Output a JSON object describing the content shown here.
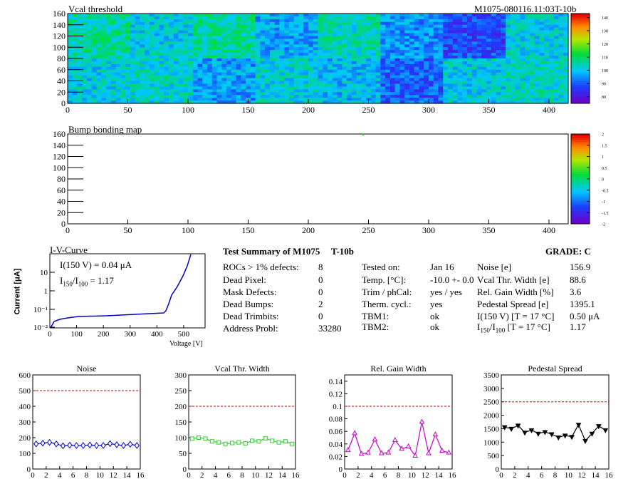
{
  "vcal_map": {
    "title": "Vcal threshold",
    "module_tag": "M1075-080116.11:03T-10b",
    "xticks": [
      "0",
      "50",
      "100",
      "150",
      "200",
      "250",
      "300",
      "350",
      "400"
    ],
    "yticks": [
      "0",
      "20",
      "40",
      "60",
      "80",
      "100",
      "120",
      "140",
      "160"
    ],
    "zticks": [
      "80",
      "90",
      "100",
      "110",
      "120",
      "130",
      "140"
    ],
    "roc_means": {
      "top": [
        106,
        101,
        106,
        97,
        104,
        95,
        88,
        101
      ],
      "bottom": [
        101,
        103,
        96,
        102,
        99,
        90,
        101,
        103
      ]
    }
  },
  "bump_map": {
    "title": "Bump bonding map",
    "xticks": [
      "0",
      "50",
      "100",
      "150",
      "200",
      "250",
      "300",
      "350",
      "400"
    ],
    "yticks": [
      "0",
      "20",
      "40",
      "60",
      "80",
      "100",
      "120",
      "140",
      "160"
    ],
    "zticks": [
      "-2",
      "-1.5",
      "-1",
      "-0.5",
      "0",
      "0.5",
      "1",
      "1.5",
      "2"
    ]
  },
  "iv": {
    "title": "I-V-Curve",
    "ylabel": "Current [μA]",
    "xlabel": "Voltage [V]",
    "xticks": [
      "0",
      "100",
      "200",
      "300",
      "400",
      "500"
    ],
    "yticks": [
      "10⁻²",
      "10⁻¹",
      "1",
      "10"
    ],
    "annotation1": "I(150 V) = 0.04 μA",
    "annotation2_a": "I",
    "annotation2_sub1": "150",
    "annotation2_b": "/I",
    "annotation2_sub2": "100",
    "annotation2_c": " =  1.17"
  },
  "summary": {
    "heading": "Test Summary of M1075",
    "tag": "T-10b",
    "grade_label": "GRADE:  C",
    "defects": [
      {
        "label": "ROCs > 1% defects:",
        "value": "8"
      },
      {
        "label": "Dead Pixel:",
        "value": "0"
      },
      {
        "label": "Mask Defects:",
        "value": "0"
      },
      {
        "label": "Dead Bumps:",
        "value": "2"
      },
      {
        "label": "Dead Trimbits:",
        "value": "0"
      },
      {
        "label": "Address Probl:",
        "value": "33280"
      }
    ],
    "conditions": [
      {
        "label": "Tested on:",
        "value": "Jan 16"
      },
      {
        "label": "Temp. [°C]:",
        "value": "-10.0 +- 0.0"
      },
      {
        "label": "Trim / phCal:",
        "value": "yes / yes"
      },
      {
        "label": "Therm. cycl.:",
        "value": "yes"
      },
      {
        "label": "TBM1:",
        "value": "ok"
      },
      {
        "label": "TBM2:",
        "value": "ok"
      }
    ],
    "results": [
      {
        "label": "Noise [e]",
        "value": "156.9"
      },
      {
        "label": "Vcal Thr. Width [e]",
        "value": "88.6"
      },
      {
        "label": "Rel. Gain Width [%]",
        "value": "3.6"
      },
      {
        "label": "Pedestal Spread [e]",
        "value": "1395.1"
      },
      {
        "label": "I(150 V) [T = 17 °C]",
        "value": "0.50 μA"
      }
    ],
    "ratio_label_a": "I",
    "ratio_label_sub1": "150",
    "ratio_label_b": "/I",
    "ratio_label_sub2": "100",
    "ratio_label_c": "  [T = 17 °C]",
    "ratio_value": "1.17"
  },
  "chart_data": [
    {
      "type": "line",
      "title": "Noise",
      "x": [
        0,
        1,
        2,
        3,
        4,
        5,
        6,
        7,
        8,
        9,
        10,
        11,
        12,
        13,
        14,
        15
      ],
      "y": [
        160,
        165,
        170,
        160,
        148,
        152,
        150,
        150,
        153,
        150,
        150,
        162,
        155,
        150,
        158,
        150
      ],
      "ylim": [
        0,
        600
      ],
      "xlim": [
        0,
        16
      ],
      "threshold": 500,
      "color": "#0000cc",
      "marker": "diamond",
      "yticks": [
        "0",
        "100",
        "200",
        "300",
        "400",
        "500",
        "600"
      ],
      "xticks": [
        "0",
        "2",
        "4",
        "6",
        "8",
        "10",
        "12",
        "14",
        "16"
      ]
    },
    {
      "type": "line",
      "title": "Vcal Thr. Width",
      "x": [
        0,
        1,
        2,
        3,
        4,
        5,
        6,
        7,
        8,
        9,
        10,
        11,
        12,
        13,
        14,
        15
      ],
      "y": [
        97,
        100,
        97,
        88,
        85,
        80,
        83,
        85,
        82,
        90,
        88,
        98,
        90,
        85,
        88,
        80
      ],
      "ylim": [
        0,
        300
      ],
      "xlim": [
        0,
        16
      ],
      "threshold": 200,
      "color": "#33cc33",
      "marker": "square",
      "yticks": [
        "0",
        "50",
        "100",
        "150",
        "200",
        "250",
        "300"
      ],
      "xticks": [
        "0",
        "2",
        "4",
        "6",
        "8",
        "10",
        "12",
        "14",
        "16"
      ]
    },
    {
      "type": "line",
      "title": "Rel. Gain Width",
      "x": [
        0,
        1,
        2,
        3,
        4,
        5,
        6,
        7,
        8,
        9,
        10,
        11,
        12,
        13,
        14,
        15
      ],
      "y": [
        0.03,
        0.057,
        0.024,
        0.026,
        0.047,
        0.025,
        0.026,
        0.046,
        0.032,
        0.036,
        0.021,
        0.075,
        0.025,
        0.055,
        0.029,
        0.026
      ],
      "ylim": [
        0,
        0.15
      ],
      "xlim": [
        0,
        16
      ],
      "threshold": 0.1,
      "color": "#cc00cc",
      "marker": "triangle",
      "yticks": [
        "0",
        "0.02",
        "0.04",
        "0.06",
        "0.08",
        "0.1",
        "0.12",
        "0.14"
      ],
      "xticks": [
        "0",
        "2",
        "4",
        "6",
        "8",
        "10",
        "12",
        "14",
        "16"
      ]
    },
    {
      "type": "line",
      "title": "Pedestal Spread",
      "x": [
        0,
        1,
        2,
        3,
        4,
        5,
        6,
        7,
        8,
        9,
        10,
        11,
        12,
        13,
        14,
        15
      ],
      "y": [
        1560,
        1500,
        1620,
        1360,
        1450,
        1320,
        1380,
        1300,
        1180,
        1250,
        1200,
        1650,
        1050,
        1320,
        1600,
        1450
      ],
      "ylim": [
        0,
        3500
      ],
      "xlim": [
        0,
        16
      ],
      "threshold": 2500,
      "color": "#000000",
      "marker": "triangle-down",
      "yticks": [
        "0",
        "500",
        "1000",
        "1500",
        "2000",
        "2500",
        "3000",
        "3500"
      ],
      "xticks": [
        "0",
        "2",
        "4",
        "6",
        "8",
        "10",
        "12",
        "14",
        "16"
      ]
    }
  ]
}
